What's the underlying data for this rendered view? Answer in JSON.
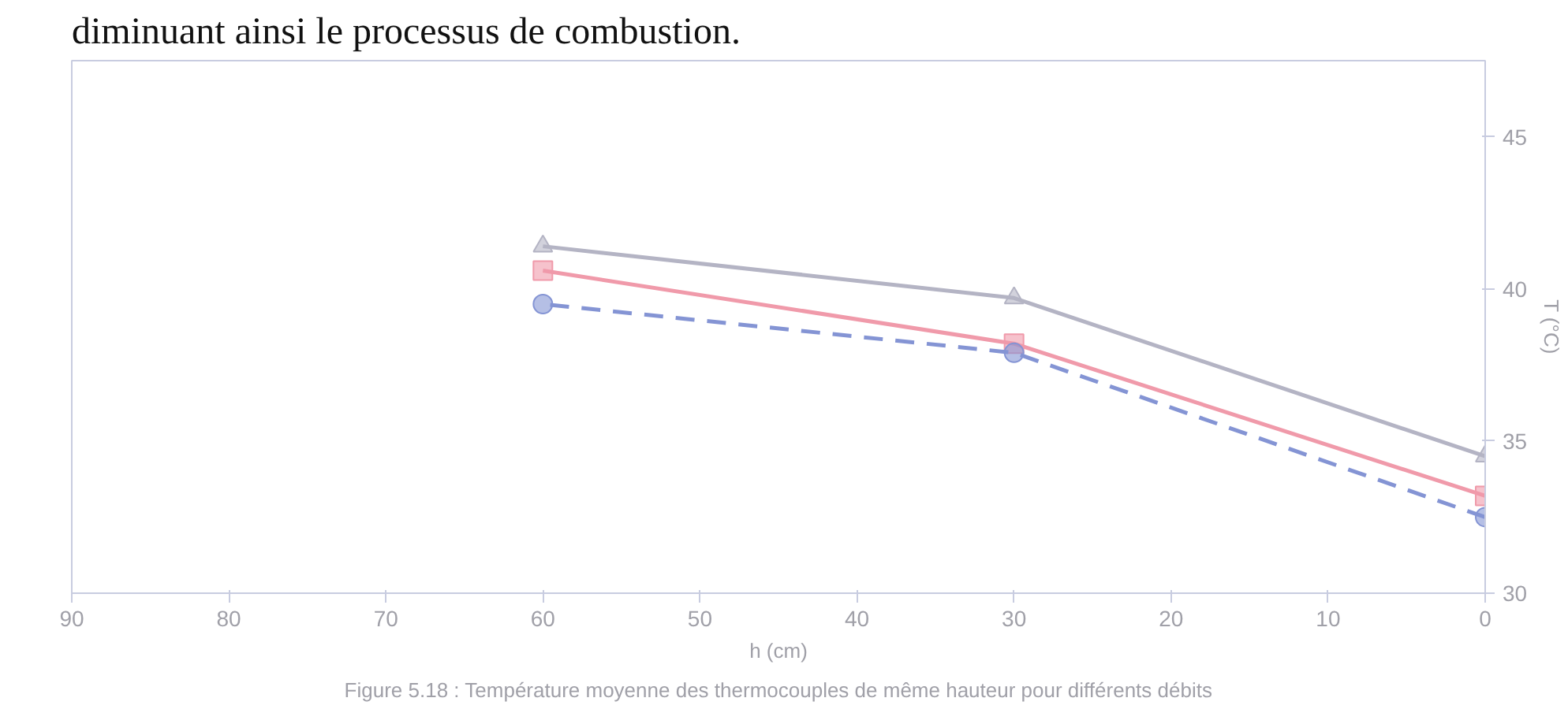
{
  "chart_data": {
    "type": "line",
    "xlabel": "h (cm)",
    "ylabel": "T (°C)",
    "x": [
      0,
      30,
      60
    ],
    "xlim": [
      90,
      0
    ],
    "xticks": [
      0,
      10,
      20,
      30,
      40,
      50,
      60,
      70,
      80,
      90
    ],
    "ylim": [
      30,
      47.5
    ],
    "yticks": [
      30,
      35,
      40,
      45
    ],
    "series": [
      {
        "color": "#b4b4c4",
        "marker": "triangle",
        "line_style": "solid",
        "values": [
          34.5,
          39.7,
          41.4
        ]
      },
      {
        "color": "#f09aaa",
        "marker": "square",
        "line_style": "solid",
        "values": [
          33.2,
          38.2,
          40.6
        ]
      },
      {
        "color": "#8494d4",
        "marker": "circle",
        "line_style": "dashed",
        "values": [
          32.5,
          37.9,
          39.5
        ]
      }
    ],
    "grid": false,
    "annotations": [
      "diminuant ainsi le processus de combustion.",
      "Figure 5.18 : Température moyenne des thermocouples de même hauteur pour différents débits"
    ]
  }
}
